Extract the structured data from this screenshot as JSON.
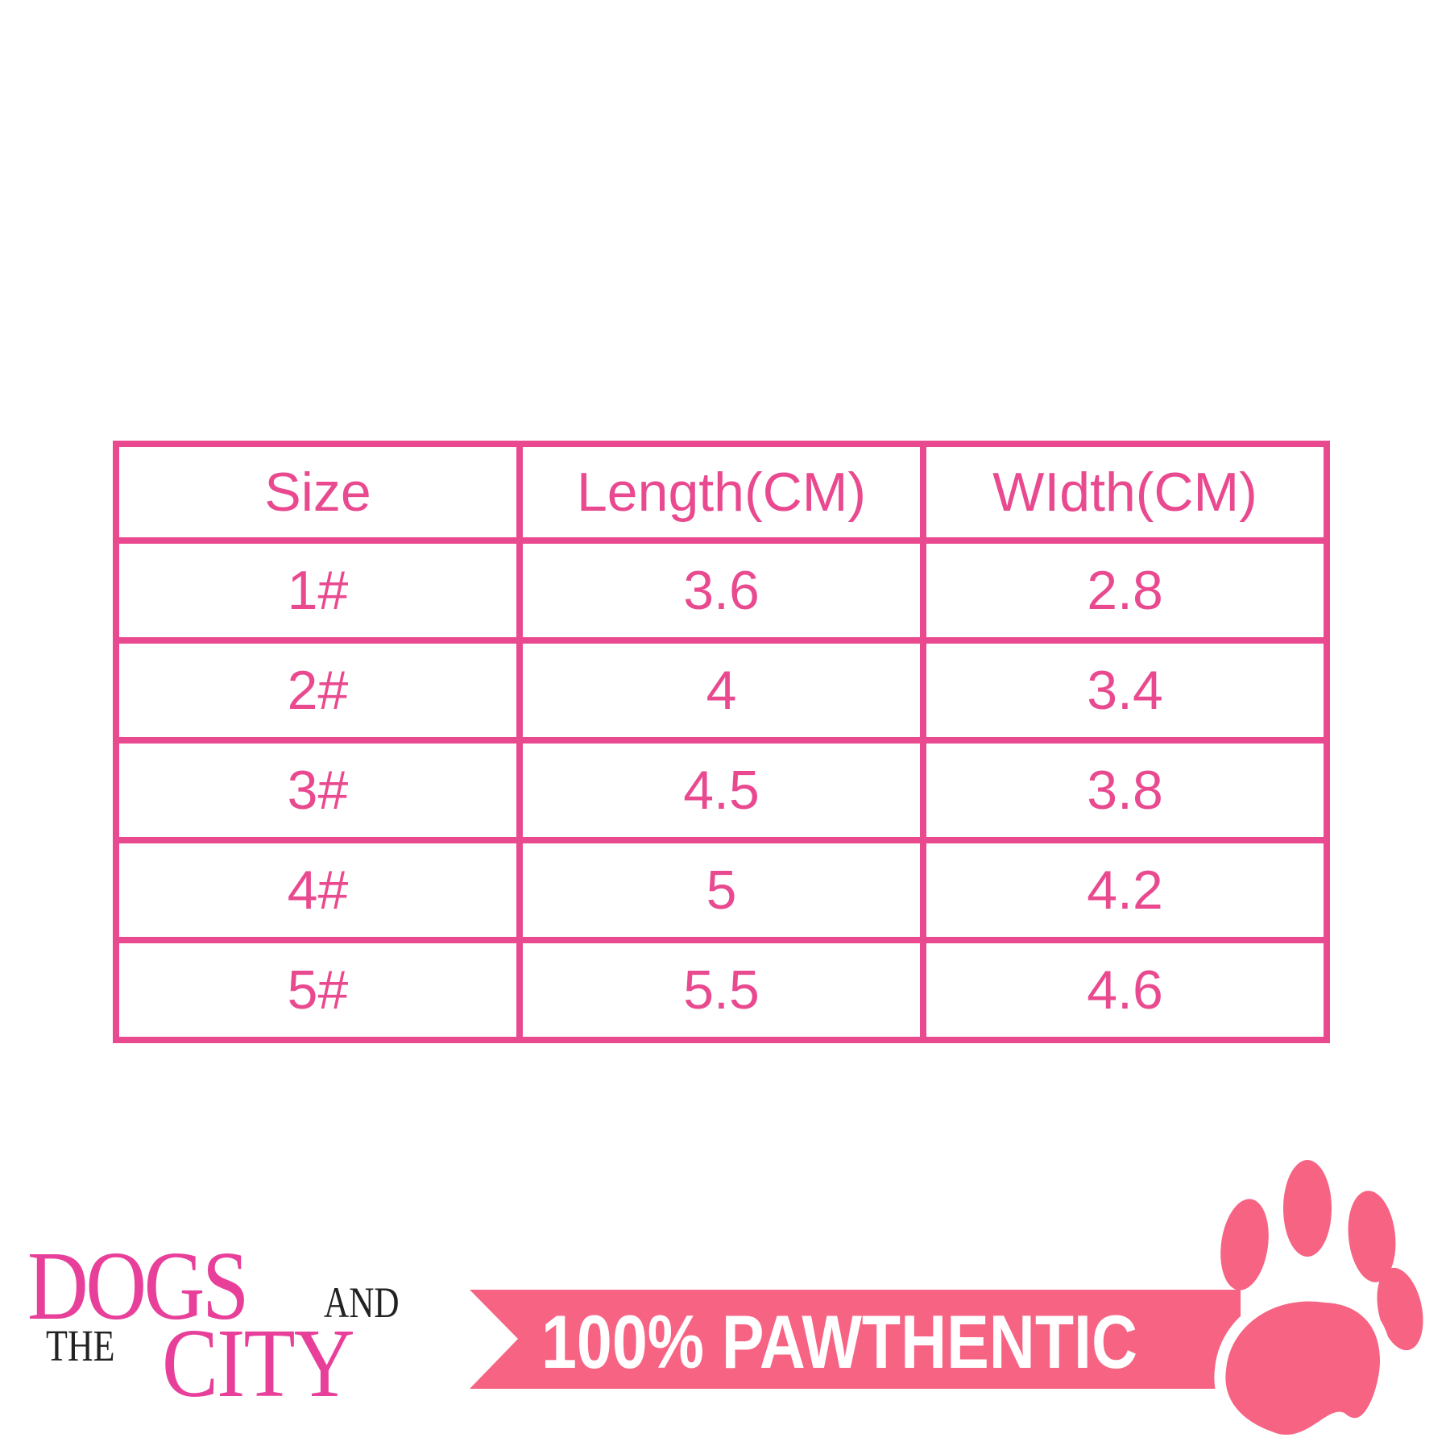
{
  "table": {
    "headers": [
      "Size",
      "Length(CM)",
      "WIdth(CM)"
    ],
    "rows": [
      [
        "1#",
        "3.6",
        "2.8"
      ],
      [
        "2#",
        "4",
        "3.4"
      ],
      [
        "3#",
        "4.5",
        "3.8"
      ],
      [
        "4#",
        "5",
        "4.2"
      ],
      [
        "5#",
        "5.5",
        "4.6"
      ]
    ]
  },
  "logo": {
    "line1": "DOGS",
    "and": "AND",
    "the": "THE",
    "line2": "CITY"
  },
  "banner": {
    "text": "100% PAWTHENTIC",
    "icon": "paw-icon"
  },
  "colors": {
    "table_pink": "#E94A8F",
    "logo_pink": "#E8409A",
    "banner_pink": "#F76383"
  }
}
